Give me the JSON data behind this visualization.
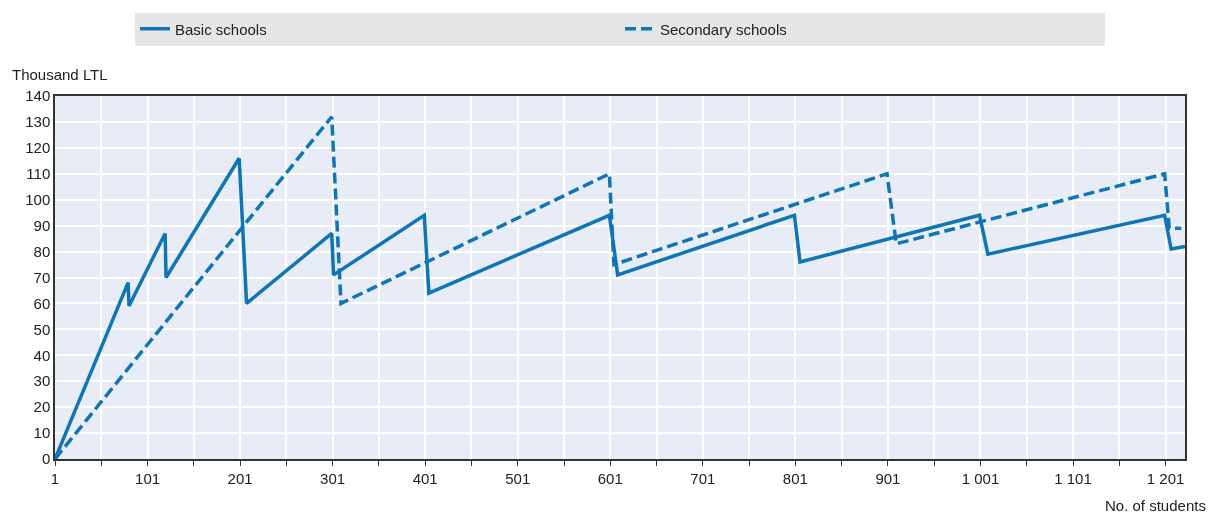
{
  "chart_data": {
    "type": "line",
    "xlabel": "No. of students",
    "ylabel": "Thousand LTL",
    "xlim": [
      1,
      1222
    ],
    "ylim": [
      0,
      140
    ],
    "xticks": [
      1,
      {
        "value": 51,
        "label": null
      },
      101,
      {
        "value": 151,
        "label": null
      },
      201,
      {
        "value": 251,
        "label": null
      },
      301,
      {
        "value": 351,
        "label": null
      },
      401,
      {
        "value": 451,
        "label": null
      },
      501,
      {
        "value": 551,
        "label": null
      },
      601,
      {
        "value": 651,
        "label": null
      },
      701,
      {
        "value": 751,
        "label": null
      },
      801,
      {
        "value": 851,
        "label": null
      },
      901,
      {
        "value": 951,
        "label": null
      },
      {
        "value": 1001,
        "label": "1 001"
      },
      {
        "value": 1051,
        "label": null
      },
      {
        "value": 1101,
        "label": "1 101"
      },
      {
        "value": 1151,
        "label": null
      },
      {
        "value": 1201,
        "label": "1 201"
      }
    ],
    "yticks": [
      0,
      10,
      20,
      30,
      40,
      50,
      60,
      70,
      80,
      90,
      100,
      110,
      120,
      130,
      140
    ],
    "grid": true,
    "legend": "top",
    "marker": "none",
    "series": [
      {
        "name": "Basic schools",
        "color": "#0f75b5",
        "line_style": "solid",
        "x": [
          1,
          80,
          81,
          120,
          121,
          200,
          208,
          300,
          302,
          400,
          405,
          600,
          609,
          800,
          806,
          1000,
          1009,
          1200,
          1207,
          1222
        ],
        "values": [
          0,
          68,
          59,
          87,
          70,
          116,
          60,
          87,
          71,
          94,
          64,
          94,
          71,
          94,
          76,
          94,
          79,
          94,
          81,
          82
        ]
      },
      {
        "name": "Secondary schools",
        "color": "#0f75b5",
        "line_style": "dashed",
        "x": [
          1,
          300,
          310,
          600,
          605,
          900,
          910,
          1200,
          1205,
          1218
        ],
        "values": [
          0,
          132,
          60,
          110,
          75,
          110,
          83,
          110,
          89,
          89
        ]
      }
    ]
  }
}
